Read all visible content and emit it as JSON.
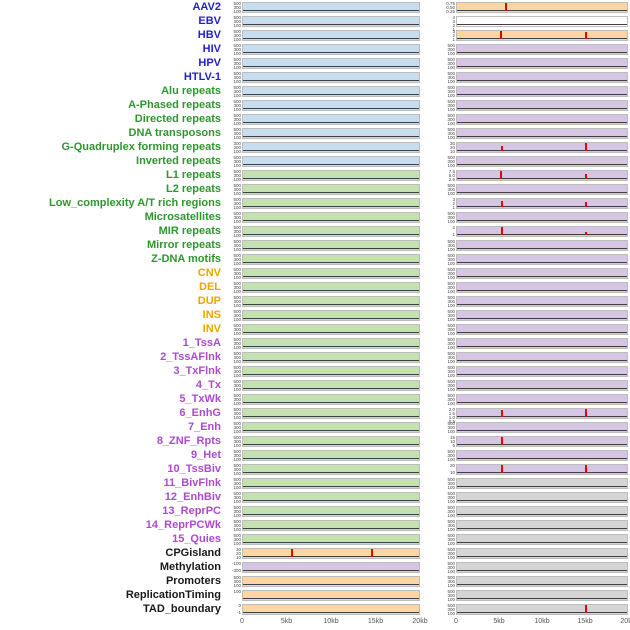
{
  "chart_data": {
    "type": "line",
    "title": "",
    "xlabel": "",
    "x_range_kb": [
      0,
      20
    ],
    "x_ticks": [
      "0",
      "5kb",
      "10kb",
      "15kb",
      "20kb"
    ],
    "default_yticks": [
      "500",
      "300",
      "100"
    ],
    "palette": {
      "label_virus": "#2323cb",
      "label_repeat": "#2f962f",
      "label_sv": "#efa400",
      "label_chromatin": "#ab4ccb",
      "label_other": "#1a1a1a",
      "light_blue": "#c8ddee",
      "light_green": "#c5e1b2",
      "light_orange": "#fbd5a2",
      "light_purple": "#d6c6e6",
      "light_gray": "#d5d5d5",
      "white": "#ffffff",
      "spike": "#e80000",
      "baseline": "#404040"
    },
    "rows": [
      {
        "label": "AAV2",
        "label_color": "label_virus",
        "left": {
          "bg": "light_blue"
        },
        "right": {
          "bg": "light_orange",
          "yticks": [
            "0.75",
            "0.50",
            "0.25"
          ],
          "spikes": [
            {
              "x": 0.28,
              "h": 0.93
            }
          ]
        }
      },
      {
        "label": "EBV",
        "label_color": "label_virus",
        "left": {
          "bg": "light_blue"
        },
        "right": {
          "bg": "white",
          "yticks": [
            "4",
            "3",
            "2",
            "1"
          ]
        }
      },
      {
        "label": "HBV",
        "label_color": "label_virus",
        "left": {
          "bg": "light_blue"
        },
        "right": {
          "bg": "light_orange",
          "yticks": [
            "3",
            "2",
            "1"
          ],
          "spikes": [
            {
              "x": 0.25,
              "h": 0.95
            },
            {
              "x": 0.75,
              "h": 0.68
            }
          ]
        }
      },
      {
        "label": "HIV",
        "label_color": "label_virus",
        "left": {
          "bg": "light_blue"
        },
        "right": {
          "bg": "light_purple"
        }
      },
      {
        "label": "HPV",
        "label_color": "label_virus",
        "left": {
          "bg": "light_blue"
        },
        "right": {
          "bg": "light_purple"
        }
      },
      {
        "label": "HTLV-1",
        "label_color": "label_virus",
        "left": {
          "bg": "light_blue"
        },
        "right": {
          "bg": "light_purple"
        }
      },
      {
        "label": "Alu repeats",
        "label_color": "label_repeat",
        "left": {
          "bg": "light_blue"
        },
        "right": {
          "bg": "light_purple"
        }
      },
      {
        "label": "A-Phased repeats",
        "label_color": "label_repeat",
        "left": {
          "bg": "light_blue"
        },
        "right": {
          "bg": "light_purple"
        }
      },
      {
        "label": "Directed repeats",
        "label_color": "label_repeat",
        "left": {
          "bg": "light_blue"
        },
        "right": {
          "bg": "light_purple"
        }
      },
      {
        "label": "DNA transposons",
        "label_color": "label_repeat",
        "left": {
          "bg": "light_blue"
        },
        "right": {
          "bg": "light_purple"
        }
      },
      {
        "label": "G-Quadruplex forming repeats",
        "label_color": "label_repeat",
        "left": {
          "bg": "light_blue",
          "yticks": [
            "300",
            "200",
            "100"
          ]
        },
        "right": {
          "bg": "light_purple",
          "yticks": [
            "30",
            "20",
            "10"
          ],
          "spikes": [
            {
              "x": 0.26,
              "h": 0.5
            },
            {
              "x": 0.75,
              "h": 0.95
            }
          ]
        }
      },
      {
        "label": "Inverted repeats",
        "label_color": "label_repeat",
        "left": {
          "bg": "light_blue"
        },
        "right": {
          "bg": "light_purple"
        }
      },
      {
        "label": "L1 repeats",
        "label_color": "label_repeat",
        "left": {
          "bg": "light_green"
        },
        "right": {
          "bg": "light_purple",
          "yticks": [
            "7.5",
            "5.0",
            "2.5"
          ],
          "spikes": [
            {
              "x": 0.25,
              "h": 0.9
            },
            {
              "x": 0.75,
              "h": 0.5
            }
          ]
        }
      },
      {
        "label": "L2 repeats",
        "label_color": "label_repeat",
        "left": {
          "bg": "light_green"
        },
        "right": {
          "bg": "light_purple"
        }
      },
      {
        "label": "Low_complexity A/T rich regions",
        "label_color": "label_repeat",
        "left": {
          "bg": "light_green"
        },
        "right": {
          "bg": "light_purple",
          "yticks": [
            "3",
            "2",
            "1"
          ],
          "spikes": [
            {
              "x": 0.26,
              "h": 0.62
            },
            {
              "x": 0.75,
              "h": 0.45
            }
          ]
        }
      },
      {
        "label": "Microsatellites",
        "label_color": "label_repeat",
        "left": {
          "bg": "light_green"
        },
        "right": {
          "bg": "light_purple"
        }
      },
      {
        "label": "MIR repeats",
        "label_color": "label_repeat",
        "left": {
          "bg": "light_green"
        },
        "right": {
          "bg": "light_purple",
          "yticks": [
            "2",
            "1"
          ],
          "spikes": [
            {
              "x": 0.26,
              "h": 0.85
            },
            {
              "x": 0.75,
              "h": 0.25
            }
          ]
        }
      },
      {
        "label": "Mirror repeats",
        "label_color": "label_repeat",
        "left": {
          "bg": "light_green"
        },
        "right": {
          "bg": "light_purple"
        }
      },
      {
        "label": "Z-DNA motifs",
        "label_color": "label_repeat",
        "left": {
          "bg": "light_green"
        },
        "right": {
          "bg": "light_purple"
        }
      },
      {
        "label": "CNV",
        "label_color": "label_sv",
        "left": {
          "bg": "light_green"
        },
        "right": {
          "bg": "light_purple"
        }
      },
      {
        "label": "DEL",
        "label_color": "label_sv",
        "left": {
          "bg": "light_green"
        },
        "right": {
          "bg": "light_purple"
        }
      },
      {
        "label": "DUP",
        "label_color": "label_sv",
        "left": {
          "bg": "light_green"
        },
        "right": {
          "bg": "light_purple"
        }
      },
      {
        "label": "INS",
        "label_color": "label_sv",
        "left": {
          "bg": "light_green"
        },
        "right": {
          "bg": "light_purple"
        }
      },
      {
        "label": "INV",
        "label_color": "label_sv",
        "left": {
          "bg": "light_green"
        },
        "right": {
          "bg": "light_purple"
        }
      },
      {
        "label": "1_TssA",
        "label_color": "label_chromatin",
        "left": {
          "bg": "light_green"
        },
        "right": {
          "bg": "light_purple"
        }
      },
      {
        "label": "2_TssAFlnk",
        "label_color": "label_chromatin",
        "left": {
          "bg": "light_green"
        },
        "right": {
          "bg": "light_purple"
        }
      },
      {
        "label": "3_TxFlnk",
        "label_color": "label_chromatin",
        "left": {
          "bg": "light_green"
        },
        "right": {
          "bg": "light_purple"
        }
      },
      {
        "label": "4_Tx",
        "label_color": "label_chromatin",
        "left": {
          "bg": "light_green"
        },
        "right": {
          "bg": "light_purple"
        }
      },
      {
        "label": "5_TxWk",
        "label_color": "label_chromatin",
        "left": {
          "bg": "light_green"
        },
        "right": {
          "bg": "light_purple"
        }
      },
      {
        "label": "6_EnhG",
        "label_color": "label_chromatin",
        "left": {
          "bg": "light_green"
        },
        "right": {
          "bg": "light_purple",
          "yticks": [
            "2.0",
            "1.5",
            "1.0",
            "0.5"
          ],
          "spikes": [
            {
              "x": 0.26,
              "h": 0.75
            },
            {
              "x": 0.75,
              "h": 0.95
            }
          ]
        }
      },
      {
        "label": "7_Enh",
        "label_color": "label_chromatin",
        "left": {
          "bg": "light_green"
        },
        "right": {
          "bg": "light_purple"
        }
      },
      {
        "label": "8_ZNF_Rpts",
        "label_color": "label_chromatin",
        "left": {
          "bg": "light_green"
        },
        "right": {
          "bg": "light_purple",
          "yticks": [
            "15",
            "10",
            "5"
          ],
          "spikes": [
            {
              "x": 0.26,
              "h": 0.9
            }
          ]
        }
      },
      {
        "label": "9_Het",
        "label_color": "label_chromatin",
        "left": {
          "bg": "light_green"
        },
        "right": {
          "bg": "light_purple"
        }
      },
      {
        "label": "10_TssBiv",
        "label_color": "label_chromatin",
        "left": {
          "bg": "light_green"
        },
        "right": {
          "bg": "light_purple",
          "yticks": [
            "20",
            "10"
          ],
          "spikes": [
            {
              "x": 0.26,
              "h": 0.85
            },
            {
              "x": 0.75,
              "h": 0.8
            }
          ]
        }
      },
      {
        "label": "11_BivFlnk",
        "label_color": "label_chromatin",
        "left": {
          "bg": "light_green"
        },
        "right": {
          "bg": "light_gray"
        }
      },
      {
        "label": "12_EnhBiv",
        "label_color": "label_chromatin",
        "left": {
          "bg": "light_green"
        },
        "right": {
          "bg": "light_gray"
        }
      },
      {
        "label": "13_ReprPC",
        "label_color": "label_chromatin",
        "left": {
          "bg": "light_green"
        },
        "right": {
          "bg": "light_gray"
        }
      },
      {
        "label": "14_ReprPCWk",
        "label_color": "label_chromatin",
        "left": {
          "bg": "light_green"
        },
        "right": {
          "bg": "light_gray"
        }
      },
      {
        "label": "15_Quies",
        "label_color": "label_chromatin",
        "left": {
          "bg": "light_green"
        },
        "right": {
          "bg": "light_gray"
        }
      },
      {
        "label": "CPGisland",
        "label_color": "label_other",
        "left": {
          "bg": "light_orange",
          "yticks": [
            "30",
            "20",
            "10"
          ],
          "spikes": [
            {
              "x": 0.27,
              "h": 0.95
            },
            {
              "x": 0.73,
              "h": 0.82
            }
          ]
        },
        "right": {
          "bg": "light_gray"
        }
      },
      {
        "label": "Methylation",
        "label_color": "label_other",
        "left": {
          "bg": "light_purple",
          "yticks": [
            "-100",
            "-300"
          ]
        },
        "right": {
          "bg": "light_gray"
        }
      },
      {
        "label": "Promoters",
        "label_color": "label_other",
        "left": {
          "bg": "light_orange"
        },
        "right": {
          "bg": "light_gray"
        }
      },
      {
        "label": "ReplicationTiming",
        "label_color": "label_other",
        "left": {
          "bg": "light_orange",
          "yticks": [
            "100"
          ]
        },
        "right": {
          "bg": "light_gray"
        }
      },
      {
        "label": "TAD_boundary",
        "label_color": "label_other",
        "left": {
          "bg": "light_orange",
          "yticks": [
            "0",
            "-1"
          ]
        },
        "right": {
          "bg": "light_gray",
          "spikes": [
            {
              "x": 0.75,
              "h": 0.88
            }
          ]
        }
      }
    ]
  }
}
